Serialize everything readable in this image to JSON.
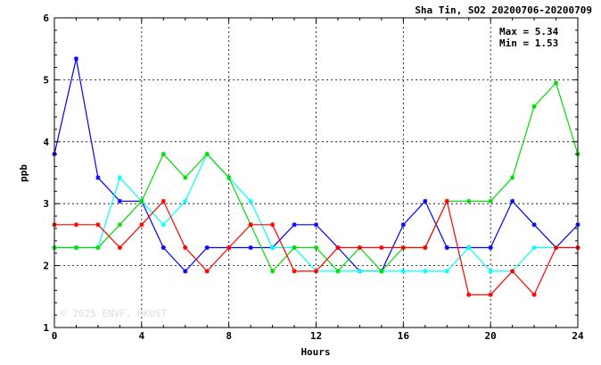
{
  "chart_data": {
    "type": "line",
    "title": "Sha Tin, SO2 20200706-20200709",
    "xlabel": "Hours",
    "ylabel": "ppb",
    "xlim": [
      0,
      24
    ],
    "ylim": [
      1,
      6
    ],
    "x_ticks": [
      "0",
      "4",
      "8",
      "12",
      "16",
      "20",
      "24"
    ],
    "y_ticks": [
      "1",
      "2",
      "3",
      "4",
      "5",
      "6"
    ],
    "grid": true,
    "x": [
      0,
      1,
      2,
      3,
      4,
      5,
      6,
      7,
      8,
      9,
      10,
      11,
      12,
      13,
      14,
      15,
      16,
      17,
      18,
      19,
      20,
      21,
      22,
      23,
      24
    ],
    "series": [
      {
        "color": "#0000ff",
        "values": [
          3.8,
          5.34,
          3.42,
          3.04,
          3.04,
          2.29,
          1.91,
          2.29,
          2.29,
          2.29,
          2.29,
          2.66,
          2.66,
          2.29,
          1.91,
          1.91,
          2.66,
          3.04,
          2.29,
          2.29,
          2.29,
          3.04,
          2.66,
          2.29,
          2.66
        ]
      },
      {
        "color": "#00ffff",
        "values": [
          2.29,
          2.29,
          2.29,
          3.42,
          3.04,
          2.66,
          3.04,
          3.8,
          3.42,
          3.04,
          2.29,
          2.29,
          1.91,
          1.91,
          1.91,
          1.91,
          1.91,
          1.91,
          1.91,
          2.29,
          1.91,
          1.91,
          2.29,
          2.29,
          2.29
        ]
      },
      {
        "color": "#00dd00",
        "values": [
          2.29,
          2.29,
          2.29,
          2.66,
          3.04,
          3.8,
          3.42,
          3.8,
          3.42,
          2.66,
          1.91,
          2.29,
          2.29,
          1.91,
          2.29,
          1.91,
          2.29,
          2.29,
          3.04,
          3.04,
          3.04,
          3.42,
          4.57,
          4.95,
          3.8
        ]
      },
      {
        "color": "#ff0000",
        "values": [
          2.66,
          2.66,
          2.66,
          2.29,
          2.66,
          3.04,
          2.29,
          1.91,
          2.29,
          2.66,
          2.66,
          1.91,
          1.91,
          2.29,
          2.29,
          2.29,
          2.29,
          2.29,
          3.04,
          1.53,
          1.53,
          1.91,
          1.53,
          2.29,
          2.29
        ]
      }
    ],
    "annotations": [
      "Max = 5.34",
      "Min = 1.53"
    ],
    "watermark": "© 2025  ENVF, HKUST"
  }
}
